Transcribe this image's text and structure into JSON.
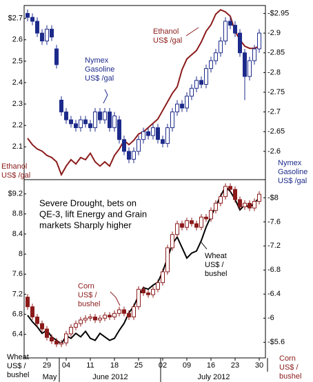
{
  "chart_data": [
    {
      "type": "candlestick",
      "ylim": [
        1.95,
        2.76
      ],
      "yticks": [
        {
          "value": 2.7,
          "label": "$2.7"
        },
        2.6,
        2.5,
        2.4,
        2.3,
        2.2,
        2.1
      ],
      "y2lim": [
        2.53,
        2.97
      ],
      "y2ticks": [
        {
          "value": 2.95,
          "label": "-$2.95"
        },
        {
          "value": 2.9,
          "label": "-2.9"
        },
        {
          "value": 2.85,
          "label": "-2.85"
        },
        {
          "value": 2.8,
          "label": "-2.8"
        },
        {
          "value": 2.75,
          "label": "-2.75"
        },
        {
          "value": 2.7,
          "label": "-2.7"
        },
        {
          "value": 2.65,
          "label": "-2.65"
        },
        {
          "value": 2.6,
          "label": "-2.6"
        }
      ],
      "y_label": {
        "lines": [
          "Ethanol",
          "US$ /gal"
        ],
        "color": "#8b1a1a"
      },
      "y2_label": {
        "lines": [
          "Nymex",
          "Gasoline",
          "US$ /gal"
        ],
        "color": "#1c2a8a"
      },
      "series": [
        {
          "kind": "line",
          "axis": "y",
          "color": "#8b1a1a",
          "values": [
            2.14,
            2.11,
            2.09,
            2.08,
            2.06,
            2.05,
            2.03,
            1.97,
            2.01,
            2.04,
            2.02,
            2.05,
            2.04,
            2.07,
            2.03,
            2.01,
            2.03,
            2.01,
            2.06,
            2.09,
            2.13,
            2.11,
            2.13,
            2.16,
            2.17,
            2.19,
            2.21,
            2.23,
            2.27,
            2.31,
            2.35,
            2.38,
            2.46,
            2.51,
            2.53,
            2.55,
            2.59,
            2.64,
            2.67,
            2.72,
            2.74,
            2.73,
            2.71,
            2.64,
            2.6,
            2.57,
            2.56,
            2.56,
            2.57
          ]
        },
        {
          "kind": "candle",
          "axis": "y2",
          "color": "#1c2a8a",
          "open": [
            2.95,
            2.94,
            2.93,
            2.9,
            2.88,
            2.91,
            2.86,
            2.73,
            2.7,
            2.68,
            2.67,
            2.66,
            2.68,
            2.67,
            2.66,
            2.7,
            2.68,
            2.7,
            2.66,
            2.68,
            2.63,
            2.6,
            2.58,
            2.6,
            2.63,
            2.65,
            2.64,
            2.66,
            2.63,
            2.62,
            2.66,
            2.7,
            2.72,
            2.71,
            2.74,
            2.76,
            2.78,
            2.77,
            2.81,
            2.83,
            2.85,
            2.88,
            2.93,
            2.92,
            2.9,
            2.85,
            2.79,
            2.83,
            2.86
          ],
          "high": [
            2.96,
            2.95,
            2.94,
            2.91,
            2.92,
            2.92,
            2.87,
            2.74,
            2.71,
            2.69,
            2.68,
            2.69,
            2.69,
            2.68,
            2.71,
            2.71,
            2.71,
            2.71,
            2.7,
            2.69,
            2.64,
            2.61,
            2.61,
            2.64,
            2.66,
            2.66,
            2.67,
            2.67,
            2.64,
            2.67,
            2.71,
            2.73,
            2.73,
            2.75,
            2.77,
            2.79,
            2.79,
            2.82,
            2.84,
            2.86,
            2.89,
            2.94,
            2.94,
            2.93,
            2.91,
            2.86,
            2.84,
            2.87,
            2.91
          ],
          "low": [
            2.93,
            2.92,
            2.89,
            2.87,
            2.87,
            2.88,
            2.81,
            2.69,
            2.67,
            2.66,
            2.65,
            2.65,
            2.66,
            2.65,
            2.65,
            2.67,
            2.67,
            2.65,
            2.65,
            2.62,
            2.59,
            2.57,
            2.57,
            2.59,
            2.62,
            2.63,
            2.63,
            2.62,
            2.61,
            2.61,
            2.65,
            2.69,
            2.7,
            2.7,
            2.73,
            2.75,
            2.76,
            2.76,
            2.8,
            2.82,
            2.84,
            2.87,
            2.91,
            2.89,
            2.84,
            2.73,
            2.78,
            2.82,
            2.85
          ],
          "close": [
            2.94,
            2.93,
            2.9,
            2.88,
            2.91,
            2.89,
            2.82,
            2.7,
            2.68,
            2.67,
            2.66,
            2.68,
            2.67,
            2.66,
            2.7,
            2.68,
            2.7,
            2.66,
            2.69,
            2.63,
            2.6,
            2.58,
            2.6,
            2.63,
            2.65,
            2.64,
            2.66,
            2.63,
            2.62,
            2.66,
            2.7,
            2.72,
            2.71,
            2.74,
            2.76,
            2.78,
            2.77,
            2.81,
            2.83,
            2.85,
            2.88,
            2.93,
            2.92,
            2.9,
            2.85,
            2.79,
            2.83,
            2.86,
            2.9
          ]
        }
      ],
      "annotations": [
        {
          "lines": [
            "Ethanol",
            "US$ /gal"
          ],
          "color": "#8b1a1a"
        },
        {
          "lines": [
            "Nymex",
            "Gasoline",
            "US$ /gal"
          ],
          "color": "#1c2a8a"
        }
      ]
    },
    {
      "type": "candlestick",
      "categories": [
        null,
        null,
        null,
        null,
        "29",
        null,
        null,
        null,
        "04",
        null,
        null,
        null,
        null,
        "11",
        null,
        null,
        null,
        null,
        "18",
        null,
        null,
        null,
        null,
        "25",
        null,
        null,
        null,
        null,
        "02",
        null,
        null,
        null,
        null,
        "09",
        null,
        null,
        null,
        null,
        "16",
        null,
        null,
        null,
        null,
        "23",
        null,
        null,
        null,
        null,
        "30"
      ],
      "months": [
        "May",
        "June 2012",
        "July 2012"
      ],
      "ylim": [
        5.93,
        9.47
      ],
      "yticks": [
        {
          "value": 9.2,
          "label": "$9.2"
        },
        8.8,
        8.4,
        8,
        7.6,
        7.2,
        6.8,
        6.4
      ],
      "y2lim": [
        5.34,
        8.29
      ],
      "y2ticks": [
        {
          "value": 8,
          "label": "-$8"
        },
        {
          "value": 7.6,
          "label": "-7.6"
        },
        {
          "value": 7.2,
          "label": "-7.2"
        },
        {
          "value": 6.8,
          "label": "-6.8"
        },
        {
          "value": 6.4,
          "label": "-6.4"
        },
        {
          "value": 6,
          "label": "-6"
        },
        {
          "value": 5.6,
          "label": "-$5.6"
        }
      ],
      "y_label": {
        "lines": [
          "Wheat",
          "US$ /",
          "bushel"
        ],
        "color": "#000000"
      },
      "y2_label": {
        "lines": [
          "Corn",
          "US$ /",
          "bushel"
        ],
        "color": "#8b1a1a"
      },
      "series": [
        {
          "kind": "line",
          "axis": "y",
          "color": "#000000",
          "values": [
            6.78,
            6.65,
            6.55,
            6.42,
            6.48,
            6.35,
            6.28,
            6.21,
            6.37,
            6.32,
            6.42,
            6.35,
            6.46,
            6.32,
            6.28,
            6.42,
            6.35,
            6.28,
            6.32,
            6.48,
            6.62,
            6.83,
            6.96,
            7.17,
            7.33,
            7.3,
            7.38,
            7.44,
            7.65,
            7.92,
            8.2,
            8.34,
            8.13,
            7.92,
            8.02,
            8.06,
            8.27,
            8.54,
            8.75,
            8.95,
            9.16,
            9.34,
            9.25,
            9.09,
            8.88,
            8.98,
            8.93,
            9.02,
            9.12
          ]
        },
        {
          "kind": "candle",
          "axis": "y2",
          "color": "#8b1a1a",
          "open": [
            6.35,
            6.19,
            6.02,
            5.91,
            5.82,
            5.68,
            5.62,
            5.57,
            5.59,
            5.74,
            5.85,
            5.91,
            5.97,
            6.0,
            6.02,
            5.97,
            6.0,
            6.05,
            6.02,
            6.08,
            6.14,
            6.08,
            6.02,
            6.19,
            6.48,
            6.42,
            6.39,
            6.48,
            6.59,
            6.77,
            7.17,
            7.39,
            7.57,
            7.51,
            7.62,
            7.57,
            7.51,
            7.68,
            7.65,
            7.79,
            7.91,
            8.02,
            8.19,
            8.14,
            7.97,
            7.85,
            7.91,
            7.83,
            7.94
          ],
          "high": [
            6.4,
            6.24,
            6.07,
            5.96,
            5.87,
            5.73,
            5.67,
            5.64,
            5.79,
            5.9,
            5.96,
            6.02,
            6.05,
            6.07,
            6.07,
            6.05,
            6.1,
            6.1,
            6.13,
            6.19,
            6.19,
            6.13,
            6.24,
            6.53,
            6.53,
            6.47,
            6.53,
            6.64,
            6.82,
            7.22,
            7.44,
            7.62,
            7.62,
            7.67,
            7.67,
            7.62,
            7.73,
            7.73,
            7.84,
            7.96,
            8.07,
            8.24,
            8.24,
            8.19,
            8.02,
            7.96,
            7.96,
            7.99,
            8.11
          ],
          "low": [
            6.14,
            5.97,
            5.86,
            5.77,
            5.63,
            5.57,
            5.52,
            5.52,
            5.54,
            5.69,
            5.8,
            5.86,
            5.92,
            5.95,
            5.92,
            5.92,
            5.95,
            5.97,
            5.97,
            6.03,
            6.03,
            5.97,
            5.97,
            6.14,
            6.37,
            6.34,
            6.34,
            6.43,
            6.54,
            6.72,
            7.12,
            7.34,
            7.46,
            7.46,
            7.52,
            7.46,
            7.46,
            7.6,
            7.6,
            7.74,
            7.86,
            7.97,
            8.09,
            7.92,
            7.8,
            7.8,
            7.78,
            7.78,
            7.89
          ],
          "close": [
            6.19,
            6.02,
            5.91,
            5.82,
            5.68,
            5.62,
            5.57,
            5.59,
            5.74,
            5.85,
            5.91,
            5.97,
            6.0,
            6.02,
            5.97,
            6.0,
            6.05,
            6.02,
            6.08,
            6.14,
            6.08,
            6.02,
            6.19,
            6.48,
            6.42,
            6.39,
            6.48,
            6.59,
            6.77,
            7.17,
            7.39,
            7.57,
            7.51,
            7.62,
            7.57,
            7.51,
            7.68,
            7.65,
            7.79,
            7.91,
            8.02,
            8.19,
            8.14,
            7.97,
            7.85,
            7.91,
            7.83,
            7.94,
            8.06
          ]
        }
      ],
      "annotations": [
        {
          "lines": [
            "Severe Drought, bets on",
            "QE-3, lift Energy and Grain",
            "markets Sharply higher"
          ],
          "color": "#000000"
        },
        {
          "lines": [
            "Wheat",
            "US$ /",
            "bushel"
          ],
          "color": "#000000"
        },
        {
          "lines": [
            "Corn",
            "US$ /",
            "bushel"
          ],
          "color": "#8b1a1a"
        }
      ]
    }
  ]
}
